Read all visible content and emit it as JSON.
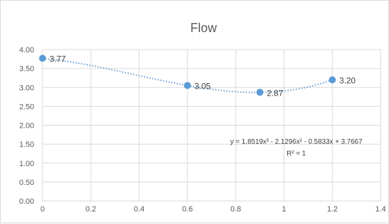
{
  "chart_data": {
    "type": "scatter",
    "title": "Flow",
    "x": [
      0,
      0.6,
      0.9,
      1.2
    ],
    "y": [
      3.77,
      3.05,
      2.87,
      3.2
    ],
    "data_labels": [
      "3.77",
      "3.05",
      "2.87",
      "3.20"
    ],
    "xlim": [
      0,
      1.4
    ],
    "ylim": [
      0,
      4
    ],
    "x_ticks": [
      "0",
      "0.2",
      "0.4",
      "0.6",
      "0.8",
      "1",
      "1.2",
      "1.4"
    ],
    "y_ticks": [
      "0.00",
      "0.50",
      "1.00",
      "1.50",
      "2.00",
      "2.50",
      "3.00",
      "3.50",
      "4.00"
    ],
    "grid": true,
    "marker_color": "#5b9bd5",
    "trendline": {
      "type": "polynomial",
      "order": 3,
      "coefficients": [
        1.8519,
        -2.1296,
        -0.5833,
        3.7667
      ],
      "equation": "y = 1.8519x³ - 2.1296x² - 0.5833x + 3.7667",
      "r_squared": "R² = 1",
      "color": "#5b9bd5"
    }
  }
}
